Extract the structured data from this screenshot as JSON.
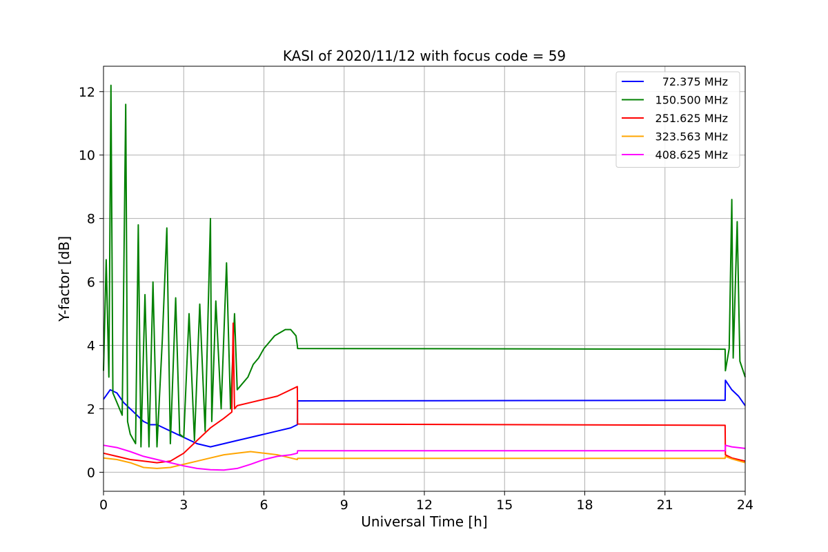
{
  "chart_data": {
    "type": "line",
    "title": "KASI of 2020/11/12 with focus code = 59",
    "xlabel": "Universal Time [h]",
    "ylabel": "Y-factor [dB]",
    "xlim": [
      0,
      24
    ],
    "ylim": [
      -0.6,
      12.8
    ],
    "xticks": [
      0,
      3,
      6,
      9,
      12,
      15,
      18,
      21,
      24
    ],
    "yticks": [
      0,
      2,
      4,
      6,
      8,
      10,
      12
    ],
    "grid": true,
    "legend_position": "top-right",
    "series": [
      {
        "name": "72.375 MHz",
        "color": "#0000ff",
        "x": [
          0,
          0.25,
          0.5,
          0.75,
          1.0,
          1.25,
          1.5,
          1.75,
          2.0,
          2.25,
          2.5,
          2.75,
          3.0,
          3.5,
          4.0,
          4.5,
          5.0,
          5.5,
          6.0,
          6.5,
          7.0,
          7.25,
          7.26,
          23.25,
          23.26,
          23.5,
          23.75,
          24.0
        ],
        "y": [
          2.3,
          2.6,
          2.5,
          2.2,
          2.0,
          1.8,
          1.6,
          1.5,
          1.5,
          1.4,
          1.3,
          1.2,
          1.1,
          0.9,
          0.8,
          0.9,
          1.0,
          1.1,
          1.2,
          1.3,
          1.4,
          1.5,
          2.25,
          2.27,
          2.9,
          2.6,
          2.4,
          2.1
        ]
      },
      {
        "name": "150.500 MHz",
        "color": "#008000",
        "x": [
          0,
          0.1,
          0.2,
          0.28,
          0.35,
          0.5,
          0.7,
          0.83,
          0.9,
          1.0,
          1.2,
          1.3,
          1.4,
          1.55,
          1.7,
          1.85,
          2.0,
          2.2,
          2.37,
          2.5,
          2.7,
          2.85,
          3.0,
          3.2,
          3.4,
          3.6,
          3.8,
          4.0,
          4.05,
          4.2,
          4.4,
          4.6,
          4.75,
          4.9,
          5.0,
          5.2,
          5.4,
          5.6,
          5.8,
          6.0,
          6.2,
          6.4,
          6.6,
          6.8,
          7.0,
          7.2,
          7.25,
          7.26,
          23.25,
          23.26,
          23.4,
          23.5,
          23.55,
          23.7,
          23.8,
          24.0
        ],
        "y": [
          3.2,
          6.7,
          3.0,
          12.2,
          2.5,
          2.2,
          1.8,
          11.6,
          1.6,
          1.2,
          0.9,
          7.8,
          0.8,
          5.6,
          0.8,
          6.0,
          0.8,
          4.2,
          7.7,
          0.9,
          5.5,
          1.2,
          1.1,
          5.0,
          1.0,
          5.3,
          1.3,
          8.0,
          1.6,
          5.4,
          2.0,
          6.6,
          2.0,
          5.0,
          2.6,
          2.8,
          3.0,
          3.4,
          3.6,
          3.9,
          4.1,
          4.3,
          4.4,
          4.5,
          4.5,
          4.3,
          4.0,
          3.9,
          3.88,
          3.2,
          3.9,
          8.6,
          3.6,
          7.9,
          3.5,
          3.0
        ]
      },
      {
        "name": "251.625 MHz",
        "color": "#ff0000",
        "x": [
          0,
          0.5,
          1.0,
          1.5,
          2.0,
          2.5,
          3.0,
          3.5,
          4.0,
          4.5,
          4.8,
          4.85,
          4.9,
          5.0,
          5.5,
          6.0,
          6.5,
          7.0,
          7.25,
          7.26,
          23.25,
          23.26,
          23.5,
          24.0
        ],
        "y": [
          0.6,
          0.5,
          0.4,
          0.35,
          0.3,
          0.35,
          0.6,
          1.0,
          1.4,
          1.7,
          1.9,
          4.7,
          2.0,
          2.1,
          2.2,
          2.3,
          2.4,
          2.6,
          2.7,
          1.52,
          1.48,
          0.55,
          0.45,
          0.35
        ]
      },
      {
        "name": "323.563 MHz",
        "color": "#ffa500",
        "x": [
          0,
          0.5,
          1.0,
          1.5,
          2.0,
          2.5,
          3.0,
          3.5,
          4.0,
          4.5,
          5.0,
          5.5,
          6.0,
          6.5,
          7.0,
          7.25,
          7.26,
          23.25,
          23.26,
          23.5,
          24.0
        ],
        "y": [
          0.45,
          0.4,
          0.3,
          0.15,
          0.12,
          0.15,
          0.25,
          0.35,
          0.45,
          0.55,
          0.6,
          0.65,
          0.6,
          0.55,
          0.45,
          0.4,
          0.44,
          0.44,
          0.5,
          0.42,
          0.3
        ]
      },
      {
        "name": "408.625 MHz",
        "color": "#ff00ff",
        "x": [
          0,
          0.5,
          1.0,
          1.5,
          2.0,
          2.5,
          3.0,
          3.5,
          4.0,
          4.5,
          5.0,
          5.5,
          6.0,
          6.5,
          7.0,
          7.25,
          7.26,
          23.25,
          23.26,
          23.5,
          24.0
        ],
        "y": [
          0.85,
          0.78,
          0.65,
          0.5,
          0.4,
          0.3,
          0.2,
          0.12,
          0.08,
          0.07,
          0.12,
          0.25,
          0.4,
          0.5,
          0.55,
          0.6,
          0.68,
          0.68,
          0.85,
          0.8,
          0.75
        ]
      }
    ]
  }
}
